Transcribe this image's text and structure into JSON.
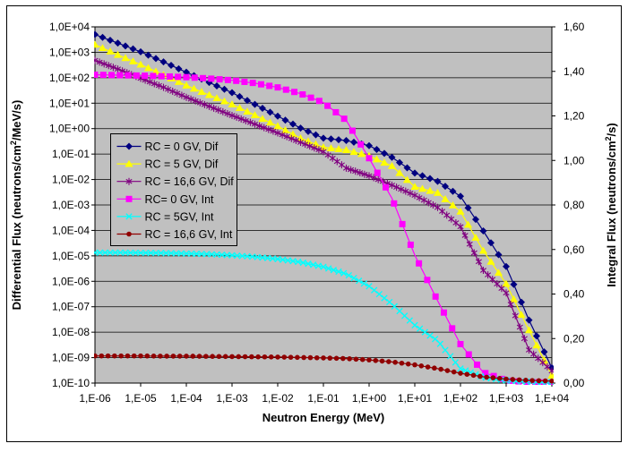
{
  "chart": {
    "plot_bg": "#C0C0C0",
    "frame_color": "#000000",
    "x_axis": {
      "title": "Neutron Energy (MeV)",
      "tick_labels": [
        "1,E-06",
        "1,E-05",
        "1,E-04",
        "1,E-03",
        "1,E-02",
        "1,E-01",
        "1,E+00",
        "1,E+01",
        "1,E+02",
        "1,E+03",
        "1,E+04"
      ],
      "log_min": -6,
      "log_max": 4
    },
    "y_left": {
      "title_pre": "Differential Flux (neutrons/cm",
      "title_sup": "2",
      "title_post": "/MeV/s)",
      "tick_labels": [
        "1,0E+04",
        "1,0E+03",
        "1,0E+02",
        "1,0E+01",
        "1,0E+00",
        "1,0E-01",
        "1,0E-02",
        "1,0E-03",
        "1,0E-04",
        "1,0E-05",
        "1,0E-06",
        "1,0E-07",
        "1,0E-08",
        "1,0E-09",
        "1,0E-10"
      ],
      "log_min": -10,
      "log_max": 4
    },
    "y_right": {
      "title_pre": "Integral Flux (neutrons/cm",
      "title_sup": "2",
      "title_post": "/s)",
      "tick_labels": [
        "1,60",
        "1,40",
        "1,20",
        "1,00",
        "0,80",
        "0,60",
        "0,40",
        "0,20",
        "0,00"
      ],
      "min": 0,
      "max": 1.6
    },
    "legend_position": "left-middle-inside",
    "grid": "horizontal-decades"
  },
  "chart_data": {
    "type": "line",
    "x_label": "Neutron Energy (MeV)",
    "x_log10": [
      -6,
      -5.5,
      -5,
      -4.5,
      -4,
      -3.5,
      -3,
      -2.5,
      -2,
      -1.5,
      -1,
      -0.5,
      0,
      0.5,
      1,
      1.5,
      2,
      2.5,
      3,
      3.5,
      4
    ],
    "series": [
      {
        "name": "RC = 0 GV, Dif",
        "axis": "left",
        "scale": "log",
        "marker": "diamond",
        "color": "#000080",
        "markers_per_decade": 6,
        "values": [
          5000,
          2300,
          1050,
          420,
          165,
          65,
          26,
          9.0,
          3.1,
          1.05,
          0.42,
          0.34,
          0.215,
          0.075,
          0.018,
          0.0085,
          0.0022,
          9.5e-05,
          3.8e-06,
          3e-08,
          4e-10
        ]
      },
      {
        "name": "RC = 5 GV, Dif",
        "axis": "left",
        "scale": "log",
        "marker": "triangle",
        "color": "#FFFF00",
        "markers_per_decade": 6,
        "values": [
          2000,
          800,
          330,
          130,
          50,
          21,
          9.0,
          3.4,
          1.25,
          0.42,
          0.185,
          0.145,
          0.085,
          0.034,
          0.0052,
          0.003,
          0.00055,
          1.6e-05,
          8e-07,
          1.2e-08,
          2e-10
        ]
      },
      {
        "name": "RC = 16,6 GV, Dif",
        "axis": "left",
        "scale": "log",
        "marker": "star",
        "color": "#800080",
        "markers_per_decade": 10,
        "values": [
          480,
          220,
          95,
          42,
          17,
          7.5,
          3.3,
          1.5,
          0.68,
          0.29,
          0.125,
          0.028,
          0.014,
          0.006,
          0.0024,
          0.0008,
          0.00014,
          2.7e-06,
          3.5e-07,
          2e-09,
          3e-10
        ]
      },
      {
        "name": "RC= 0 GV, Int",
        "axis": "right",
        "scale": "linear",
        "marker": "square",
        "color": "#FF00FF",
        "markers_per_decade": 5.5,
        "values": [
          1.385,
          1.383,
          1.381,
          1.378,
          1.374,
          1.368,
          1.36,
          1.347,
          1.328,
          1.3,
          1.26,
          1.18,
          1.01,
          0.83,
          0.575,
          0.37,
          0.175,
          0.048,
          0.012,
          0.004,
          0.002
        ]
      },
      {
        "name": "RC = 5GV, Int",
        "axis": "right",
        "scale": "linear",
        "marker": "x",
        "color": "#00FFFF",
        "markers_per_decade": 9,
        "values": [
          0.586,
          0.586,
          0.585,
          0.584,
          0.582,
          0.579,
          0.574,
          0.567,
          0.557,
          0.543,
          0.522,
          0.49,
          0.435,
          0.355,
          0.26,
          0.19,
          0.065,
          0.026,
          0.012,
          0.006,
          0.003
        ]
      },
      {
        "name": "RC = 16,6 GV, Int",
        "axis": "right",
        "scale": "linear",
        "marker": "circle",
        "color": "#900000",
        "markers_per_decade": 7,
        "values": [
          0.122,
          0.122,
          0.122,
          0.121,
          0.121,
          0.12,
          0.119,
          0.118,
          0.117,
          0.115,
          0.113,
          0.11,
          0.104,
          0.095,
          0.082,
          0.065,
          0.044,
          0.028,
          0.018,
          0.012,
          0.009
        ]
      }
    ],
    "y_left_range_log10": [
      -10,
      4
    ],
    "y_right_range": [
      0,
      1.6
    ]
  }
}
